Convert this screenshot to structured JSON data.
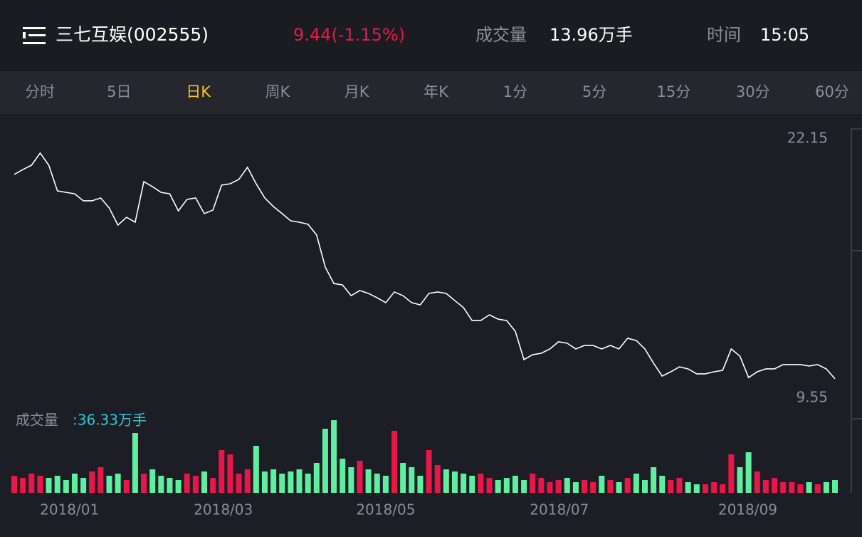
{
  "header": {
    "title": "三七互娱(002555)",
    "price": "9.44(-1.15%)",
    "volume_label": "成交量",
    "volume_value": "13.96万手",
    "time_label": "时间",
    "time_value": "15:05"
  },
  "tabs": [
    "分时",
    "5日",
    "日K",
    "周K",
    "月K",
    "年K",
    "1分",
    "5分",
    "15分",
    "30分",
    "60分"
  ],
  "active_tab": 2,
  "chart_data": {
    "type": "line",
    "color": "#ffffff",
    "values": [
      20.42,
      20.66,
      20.87,
      21.46,
      20.87,
      19.62,
      19.55,
      19.48,
      19.14,
      19.14,
      19.28,
      18.79,
      17.96,
      18.34,
      18.1,
      20.07,
      19.83,
      19.55,
      19.48,
      18.65,
      19.21,
      19.28,
      18.52,
      18.69,
      19.9,
      19.97,
      20.18,
      20.77,
      19.97,
      19.28,
      18.86,
      18.52,
      18.17,
      18.1,
      18.0,
      17.48,
      15.92,
      15.12,
      15.05,
      14.53,
      14.78,
      14.64,
      14.43,
      14.19,
      14.71,
      14.53,
      14.19,
      14.08,
      14.64,
      14.71,
      14.64,
      14.29,
      13.95,
      13.32,
      13.32,
      13.6,
      13.39,
      13.32,
      12.8,
      11.42,
      11.66,
      11.73,
      11.94,
      12.29,
      12.22,
      11.94,
      12.11,
      12.11,
      11.94,
      12.11,
      11.94,
      12.46,
      12.35,
      11.94,
      11.25,
      10.62,
      10.83,
      11.07,
      10.97,
      10.73,
      10.73,
      10.83,
      10.9,
      11.94,
      11.59,
      10.55,
      10.83,
      10.97,
      10.97,
      11.18,
      11.18,
      11.18,
      11.11,
      11.18,
      10.97,
      10.49
    ],
    "ylim": [
      9.55,
      22.15
    ],
    "yticks": [
      9.55,
      22.15
    ],
    "xlim": [
      0,
      95
    ],
    "xticks": [
      {
        "value": 6.4,
        "label": "2018/01"
      },
      {
        "value": 24.2,
        "label": "2018/03"
      },
      {
        "value": 43.0,
        "label": "2018/05"
      },
      {
        "value": 63.1,
        "label": "2018/07"
      },
      {
        "value": 84.9,
        "label": "2018/09"
      }
    ],
    "volume": {
      "label": "成交量",
      "value_label": ":36.33万手",
      "up_color": "#e8174a",
      "down_color": "#5ef0a0",
      "ylim": [
        0,
        40
      ],
      "values": [
        8,
        7,
        9,
        8,
        7,
        8,
        6,
        9,
        7,
        10,
        12,
        8,
        9,
        6,
        28,
        9,
        11,
        8,
        7,
        6,
        9,
        8,
        10,
        7,
        20,
        18,
        9,
        11,
        22,
        10,
        11,
        9,
        10,
        11,
        9,
        14,
        30,
        34,
        16,
        12,
        15,
        11,
        9,
        8,
        29,
        14,
        12,
        8,
        20,
        13,
        11,
        10,
        9,
        8,
        9,
        7,
        6,
        7,
        8,
        6,
        9,
        7,
        5,
        6,
        7,
        5,
        6,
        5,
        8,
        6,
        5,
        7,
        9,
        6,
        12,
        8,
        6,
        7,
        5,
        4,
        4,
        5,
        4,
        18,
        12,
        19,
        10,
        6,
        7,
        5,
        5,
        4,
        5,
        4,
        5,
        6
      ]
    }
  }
}
